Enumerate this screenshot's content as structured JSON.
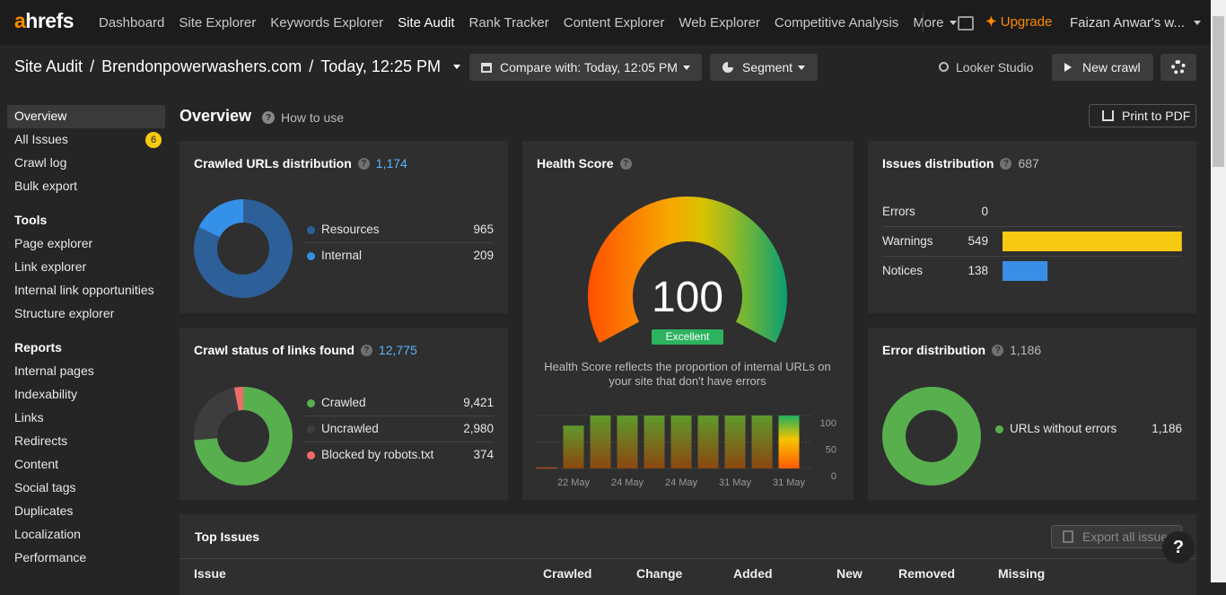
{
  "nav": {
    "logo": "ahrefs",
    "items": [
      "Dashboard",
      "Site Explorer",
      "Keywords Explorer",
      "Site Audit",
      "Rank Tracker",
      "Content Explorer",
      "Web Explorer",
      "Competitive Analysis",
      "More"
    ],
    "upgrade": "Upgrade",
    "account": "Faizan Anwar's w..."
  },
  "header": {
    "crumbs": [
      "Site Audit",
      "Brendonpowerwashers.com",
      "Today, 12:25 PM"
    ],
    "separator": "/",
    "compare": "Compare with: Today, 12:05 PM",
    "segment": "Segment",
    "looker": "Looker Studio",
    "new_crawl": "New crawl"
  },
  "sidebar": {
    "top": [
      "Overview",
      "All Issues",
      "Crawl log",
      "Bulk export"
    ],
    "badge": 6,
    "sections": [
      {
        "title": "Tools",
        "items": [
          "Page explorer",
          "Link explorer",
          "Internal link opportunities",
          "Structure explorer"
        ]
      },
      {
        "title": "Reports",
        "items": [
          "Internal pages",
          "Indexability",
          "Links",
          "Redirects",
          "Content",
          "Social tags",
          "Duplicates",
          "Localization",
          "Performance"
        ]
      }
    ]
  },
  "page": {
    "title": "Overview",
    "how_to": "How to use",
    "print": "Print to PDF"
  },
  "help": "?",
  "crawled_urls": {
    "title": "Crawled URLs distribution",
    "total": {
      "value": 1174,
      "label": "1,174"
    },
    "segments": [
      {
        "name": "Resources",
        "value": 965,
        "color": "#2d6099"
      },
      {
        "name": "Internal",
        "value": 209,
        "color": "#3590e8"
      }
    ]
  },
  "crawl_status": {
    "title": "Crawl status of links found",
    "total": {
      "value": 12775,
      "label": "12,775"
    },
    "segments": [
      {
        "name": "Crawled",
        "value": 9421,
        "label": "9,421",
        "color": "#57b04d"
      },
      {
        "name": "Uncrawled",
        "value": 2980,
        "label": "2,980",
        "color": "#3d3d3d"
      },
      {
        "name": "Blocked by robots.txt",
        "value": 374,
        "color": "#f26b6b"
      }
    ]
  },
  "health": {
    "title": "Health Score",
    "score": 100,
    "rating": "Excellent",
    "description": "Health Score reflects the proportion of internal URLs on your site that don't have errors",
    "trend": {
      "type": "bar",
      "categories": [
        null,
        "22 May",
        null,
        "24 May",
        null,
        "24 May",
        null,
        "31 May",
        null,
        "31 May"
      ],
      "values": [
        2,
        81,
        100,
        100,
        100,
        100,
        100,
        100,
        100,
        100
      ],
      "ylim": [
        0,
        100
      ],
      "yticks": [
        0,
        50,
        100
      ],
      "grid": true
    }
  },
  "issues": {
    "title": "Issues distribution",
    "total": 687,
    "rows": [
      {
        "name": "Errors",
        "value": 0
      },
      {
        "name": "Warnings",
        "value": 549,
        "color": "#f7c912"
      },
      {
        "name": "Notices",
        "value": 138,
        "color": "#3a8ee6"
      }
    ]
  },
  "errors": {
    "title": "Error distribution",
    "total": {
      "value": 1186,
      "label": "1,186"
    },
    "segments": [
      {
        "name": "URLs without errors",
        "value": 1186,
        "label": "1,186",
        "color": "#57b04d"
      }
    ]
  },
  "top_issues": {
    "title": "Top Issues",
    "export": "Export all issues",
    "columns": [
      "Issue",
      "Crawled",
      "Change",
      "Added",
      "New",
      "Removed",
      "Missing"
    ]
  }
}
